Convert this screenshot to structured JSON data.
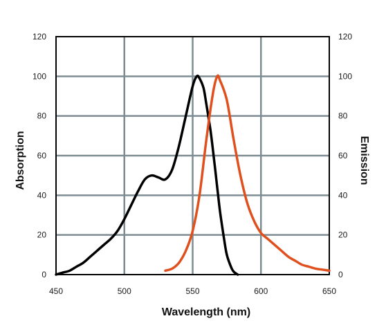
{
  "chart_data": {
    "type": "line",
    "title": "",
    "xlabel": "Wavelength (nm)",
    "ylabel_left": "Absorption",
    "ylabel_right": "Emission",
    "xlim": [
      450,
      650
    ],
    "ylim": [
      0,
      120
    ],
    "x_ticks": [
      450,
      500,
      550,
      600,
      650
    ],
    "y_ticks": [
      0,
      20,
      40,
      60,
      80,
      100,
      120
    ],
    "grid": true,
    "legend": "none",
    "series": [
      {
        "color": "#000000",
        "x": [
          450,
          455,
          460,
          465,
          470,
          475,
          480,
          485,
          490,
          495,
          500,
          505,
          510,
          515,
          520,
          525,
          530,
          535,
          540,
          545,
          550,
          553,
          555,
          558,
          560,
          563,
          565,
          568,
          570,
          573,
          575,
          578,
          580,
          583
        ],
        "y": [
          0,
          1,
          2,
          4,
          6,
          9,
          12,
          15,
          18,
          22,
          28,
          35,
          42,
          48,
          50,
          49,
          48,
          53,
          65,
          80,
          95,
          100,
          99,
          94,
          86,
          73,
          62,
          44,
          32,
          18,
          10,
          4,
          1.5,
          0
        ]
      },
      {
        "color": "#e0501e",
        "x": [
          530,
          535,
          540,
          545,
          550,
          555,
          560,
          565,
          568,
          570,
          575,
          580,
          585,
          590,
          595,
          600,
          605,
          610,
          615,
          620,
          625,
          630,
          635,
          640,
          645,
          650
        ],
        "y": [
          2,
          3,
          6,
          12,
          22,
          40,
          68,
          92,
          100,
          98,
          88,
          68,
          50,
          36,
          27,
          21,
          18,
          15,
          12,
          9,
          7,
          5,
          4,
          3,
          2.5,
          2
        ]
      }
    ]
  }
}
